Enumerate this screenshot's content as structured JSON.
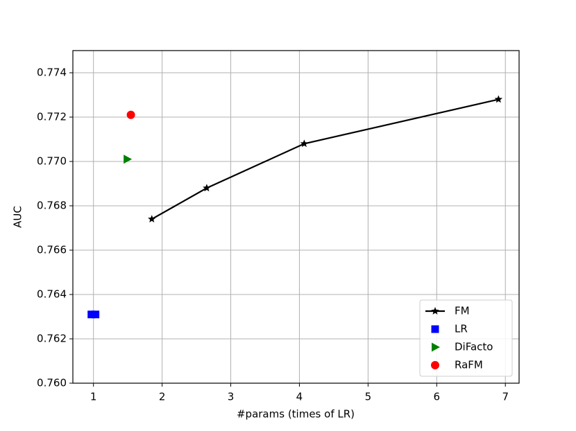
{
  "chart_data": {
    "type": "line",
    "x_label": "#params (times of LR)",
    "y_label": "AUC",
    "xlim": [
      0.7,
      7.2
    ],
    "ylim": [
      0.76,
      0.775
    ],
    "xticks": [
      1,
      2,
      3,
      4,
      5,
      6,
      7
    ],
    "yticks": [
      {
        "value": 0.76,
        "label": "0.760"
      },
      {
        "value": 0.762,
        "label": "0.762"
      },
      {
        "value": 0.764,
        "label": "0.764"
      },
      {
        "value": 0.766,
        "label": "0.766"
      },
      {
        "value": 0.768,
        "label": "0.768"
      },
      {
        "value": 0.77,
        "label": "0.770"
      },
      {
        "value": 0.772,
        "label": "0.772"
      },
      {
        "value": 0.774,
        "label": "0.774"
      }
    ],
    "grid": true,
    "legend": "lower right",
    "series": [
      {
        "name": "FM",
        "color": "#000000",
        "marker": "star",
        "line": true,
        "x": [
          1.85,
          2.65,
          4.07,
          6.9
        ],
        "values": [
          0.7674,
          0.7688,
          0.7708,
          0.7728
        ]
      },
      {
        "name": "LR",
        "color": "#0000ff",
        "marker": "square",
        "line": false,
        "x": [
          0.97,
          1.03
        ],
        "values": [
          0.7631,
          0.7631
        ]
      },
      {
        "name": "DiFacto",
        "color": "#008000",
        "marker": "triangle-right",
        "line": false,
        "x": [
          1.49
        ],
        "values": [
          0.7701
        ]
      },
      {
        "name": "RaFM",
        "color": "#ff0000",
        "marker": "circle",
        "line": false,
        "x": [
          1.545
        ],
        "values": [
          0.7721
        ]
      }
    ]
  }
}
